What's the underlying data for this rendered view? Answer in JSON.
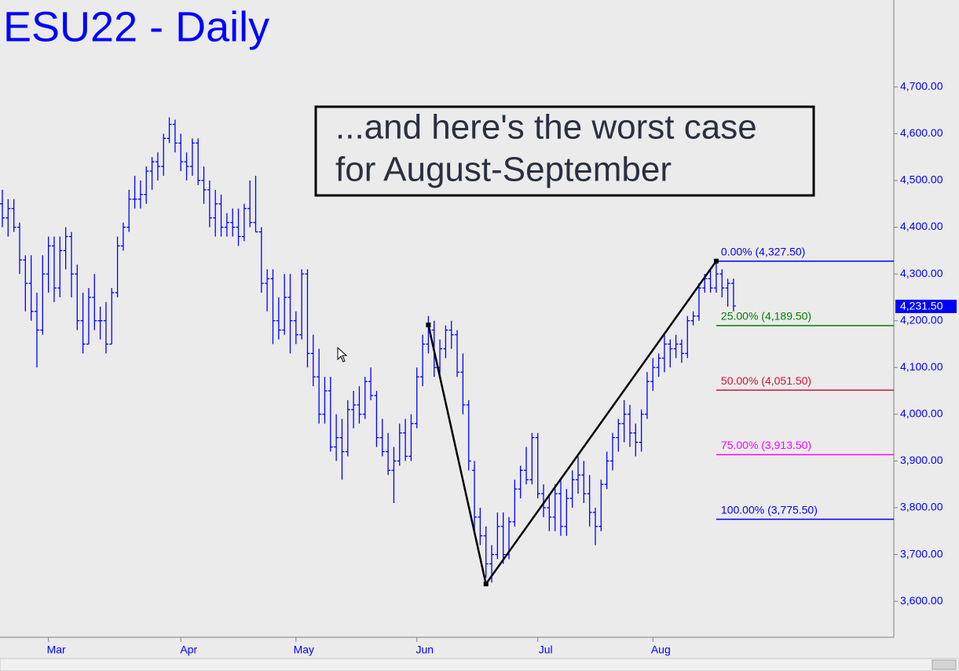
{
  "chart_data": {
    "type": "ohlc",
    "title": "ESU22 - Daily",
    "annotation": [
      "...and here's the worst case",
      "for August-September"
    ],
    "categories": [
      null,
      null,
      null,
      null,
      null,
      null,
      null,
      null,
      "Mar",
      null,
      null,
      null,
      null,
      null,
      null,
      null,
      null,
      null,
      null,
      null,
      null,
      null,
      null,
      null,
      null,
      null,
      null,
      null,
      null,
      null,
      null,
      "Apr",
      null,
      null,
      null,
      null,
      null,
      null,
      null,
      null,
      null,
      null,
      null,
      null,
      null,
      null,
      null,
      null,
      null,
      null,
      null,
      "May",
      null,
      null,
      null,
      null,
      null,
      null,
      null,
      null,
      null,
      null,
      null,
      null,
      null,
      null,
      null,
      null,
      null,
      null,
      null,
      null,
      "Jun",
      null,
      null,
      null,
      null,
      null,
      null,
      null,
      null,
      null,
      null,
      null,
      null,
      null,
      null,
      null,
      null,
      null,
      null,
      null,
      null,
      "Jul",
      null,
      null,
      null,
      null,
      null,
      null,
      null,
      null,
      null,
      null,
      null,
      null,
      null,
      null,
      null,
      null,
      null,
      null,
      null,
      "Aug",
      null,
      null,
      null,
      null,
      null,
      null,
      null,
      null,
      null,
      null,
      null,
      null,
      null,
      null
    ],
    "open": [
      4450,
      4420,
      4440,
      4400,
      4330,
      4280,
      4220,
      4180,
      4300,
      4360,
      4270,
      4350,
      4380,
      4300,
      4200,
      4150,
      4250,
      4200,
      4200,
      4150,
      4260,
      4360,
      4400,
      4460,
      4460,
      4470,
      4520,
      4540,
      4530,
      4590,
      4620,
      4580,
      4540,
      4530,
      4580,
      4500,
      4480,
      4420,
      4450,
      4400,
      4410,
      4400,
      4380,
      4440,
      4410,
      4390,
      4280,
      4290,
      4200,
      4180,
      4250,
      4200,
      4170,
      4300,
      4130,
      4080,
      4000,
      4050,
      3930,
      3950,
      3920,
      4010,
      4020,
      4000,
      4070,
      4040,
      3950,
      3920,
      3880,
      3900,
      3960,
      3910,
      3980,
      4080,
      4150,
      4180,
      4100,
      4140,
      4180,
      4170,
      4090,
      4020,
      3880,
      3780,
      3740,
      3680,
      3700,
      3760,
      3700,
      3770,
      3840,
      3880,
      3860,
      3950,
      3830,
      3800,
      3780,
      3830,
      3760,
      3820,
      3860,
      3870,
      3830,
      3790,
      3760,
      3850,
      3900,
      3950,
      3980,
      4000,
      3960,
      3940,
      4000,
      4070,
      4100,
      4120,
      4150,
      4140,
      4150,
      4130,
      4200,
      4210,
      4270,
      4290,
      4270,
      4300,
      4270,
      4280
    ],
    "high": [
      4480,
      4460,
      4460,
      4410,
      4340,
      4340,
      4260,
      4340,
      4380,
      4380,
      4380,
      4400,
      4390,
      4320,
      4260,
      4270,
      4300,
      4230,
      4240,
      4270,
      4380,
      4410,
      4480,
      4510,
      4500,
      4530,
      4550,
      4560,
      4600,
      4635,
      4630,
      4600,
      4560,
      4590,
      4590,
      4530,
      4500,
      4480,
      4470,
      4430,
      4440,
      4440,
      4450,
      4500,
      4510,
      4400,
      4310,
      4310,
      4250,
      4300,
      4300,
      4220,
      4310,
      4310,
      4170,
      4140,
      4080,
      4080,
      4000,
      3990,
      4030,
      4050,
      4060,
      4080,
      4100,
      4050,
      3990,
      3960,
      3930,
      3980,
      3990,
      4000,
      4100,
      4170,
      4210,
      4200,
      4160,
      4190,
      4200,
      4180,
      4130,
      4030,
      3900,
      3800,
      3760,
      3720,
      3790,
      3790,
      3780,
      3860,
      3890,
      3930,
      3960,
      3960,
      3850,
      3830,
      3850,
      3860,
      3840,
      3880,
      3910,
      3900,
      3870,
      3800,
      3860,
      3920,
      3960,
      3990,
      4030,
      4020,
      3980,
      4010,
      4090,
      4120,
      4130,
      4170,
      4160,
      4170,
      4160,
      4210,
      4220,
      4280,
      4300,
      4310,
      4327.5,
      4310,
      4290,
      4290
    ],
    "low": [
      4400,
      4380,
      4390,
      4300,
      4220,
      4200,
      4100,
      4170,
      4260,
      4240,
      4250,
      4310,
      4250,
      4180,
      4130,
      4150,
      4180,
      4160,
      4130,
      4150,
      4250,
      4350,
      4390,
      4440,
      4440,
      4450,
      4480,
      4500,
      4510,
      4580,
      4560,
      4520,
      4500,
      4510,
      4490,
      4450,
      4400,
      4380,
      4380,
      4380,
      4380,
      4360,
      4370,
      4400,
      4390,
      4260,
      4220,
      4150,
      4160,
      4170,
      4130,
      4150,
      4160,
      4100,
      4060,
      3980,
      3980,
      3920,
      3900,
      3860,
      3910,
      3970,
      3980,
      3990,
      4030,
      3930,
      3910,
      3870,
      3810,
      3890,
      3900,
      3900,
      3970,
      4060,
      4130,
      4080,
      4080,
      4120,
      4140,
      4080,
      4000,
      3880,
      3750,
      3720,
      3650,
      3640,
      3690,
      3680,
      3690,
      3760,
      3820,
      3850,
      3850,
      3820,
      3780,
      3750,
      3750,
      3740,
      3740,
      3800,
      3830,
      3810,
      3760,
      3720,
      3750,
      3840,
      3880,
      3920,
      3940,
      3930,
      3910,
      3920,
      3990,
      4050,
      4080,
      4090,
      4100,
      4120,
      4110,
      4120,
      4190,
      4200,
      4260,
      4260,
      4260,
      4250,
      4230,
      4220
    ],
    "close": [
      4420,
      4440,
      4400,
      4330,
      4280,
      4220,
      4180,
      4300,
      4360,
      4270,
      4350,
      4380,
      4300,
      4200,
      4150,
      4250,
      4200,
      4200,
      4150,
      4260,
      4360,
      4400,
      4460,
      4460,
      4470,
      4520,
      4540,
      4530,
      4590,
      4620,
      4580,
      4540,
      4530,
      4580,
      4500,
      4480,
      4420,
      4450,
      4400,
      4410,
      4400,
      4380,
      4440,
      4410,
      4390,
      4280,
      4290,
      4200,
      4180,
      4250,
      4200,
      4170,
      4300,
      4130,
      4080,
      4000,
      4050,
      3930,
      3950,
      3920,
      4010,
      4020,
      4000,
      4070,
      4040,
      3950,
      3920,
      3880,
      3900,
      3960,
      3910,
      3980,
      4080,
      4150,
      4180,
      4100,
      4140,
      4180,
      4170,
      4090,
      4020,
      3900,
      3780,
      3740,
      3680,
      3700,
      3760,
      3700,
      3770,
      3840,
      3880,
      3860,
      3950,
      3830,
      3800,
      3780,
      3830,
      3760,
      3820,
      3860,
      3870,
      3830,
      3790,
      3760,
      3850,
      3900,
      3950,
      3980,
      4000,
      3960,
      3940,
      4000,
      4070,
      4100,
      4120,
      4150,
      4140,
      4150,
      4130,
      4200,
      4210,
      4270,
      4290,
      4270,
      4300,
      4270,
      4280,
      4231.5
    ],
    "color": "#0000ff",
    "swing_lines": {
      "x": [
        74,
        84,
        124
      ],
      "y": [
        4191,
        3637,
        4327.5
      ],
      "color": "#000000"
    },
    "fib_levels": [
      {
        "value": 4327.5,
        "label": "0.00% (4,327.50)",
        "color": "#0000ff"
      },
      {
        "value": 4189.5,
        "label": "25.00% (4,189.50)",
        "color": "#008000"
      },
      {
        "value": 4051.5,
        "label": "50.00% (4,051.50)",
        "color": "#d0103a"
      },
      {
        "value": 3913.5,
        "label": "75.00% (3,913.50)",
        "color": "#ff00ff"
      },
      {
        "value": 3775.5,
        "label": "100.00% (3,775.50)",
        "color": "#0000ff"
      }
    ],
    "last_price": {
      "value": 4231.5,
      "label": "4,231.50"
    },
    "ylim": [
      3523,
      4886
    ],
    "yticks": [
      {
        "value": 3600,
        "label": "3,600.00"
      },
      {
        "value": 3700,
        "label": "3,700.00"
      },
      {
        "value": 3800,
        "label": "3,800.00"
      },
      {
        "value": 3900,
        "label": "3,900.00"
      },
      {
        "value": 4000,
        "label": "4,000.00"
      },
      {
        "value": 4100,
        "label": "4,100.00"
      },
      {
        "value": 4200,
        "label": "4,200.00"
      },
      {
        "value": 4300,
        "label": "4,300.00"
      },
      {
        "value": 4400,
        "label": "4,400.00"
      },
      {
        "value": 4500,
        "label": "4,500.00"
      },
      {
        "value": 4600,
        "label": "4,600.00"
      },
      {
        "value": 4700,
        "label": "4,700.00"
      }
    ]
  }
}
